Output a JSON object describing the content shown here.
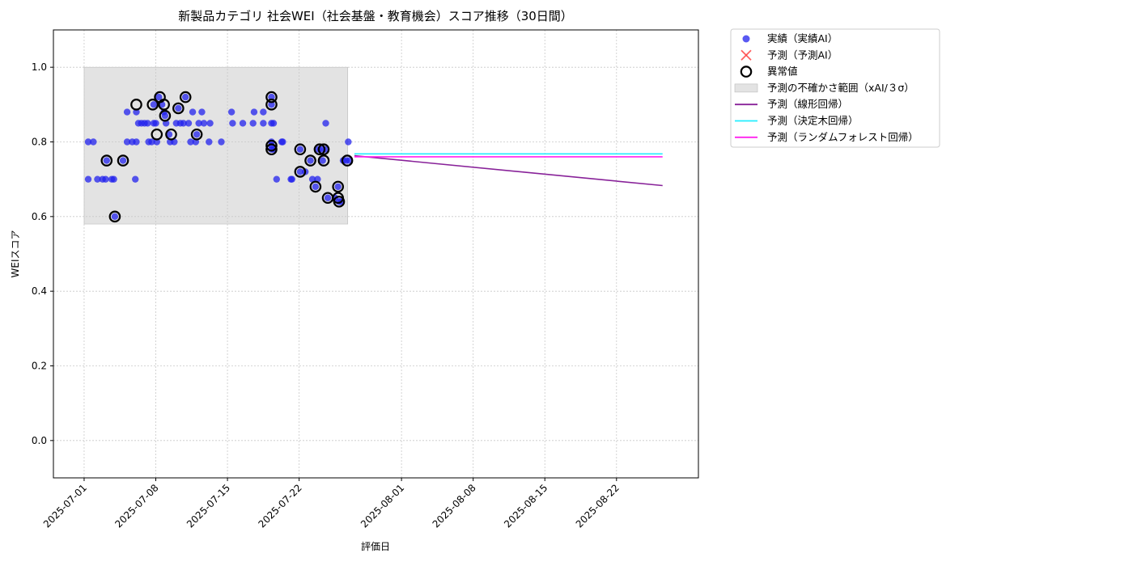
{
  "chart_data": {
    "type": "scatter",
    "title": "新製品カテゴリ 社会WEI（社会基盤・教育機会）スコア推移（30日間）",
    "xlabel": "評価日",
    "ylabel": "WEIスコア",
    "xlim": [
      "2025-06-28",
      "2025-08-30"
    ],
    "ylim": [
      -0.1,
      1.1
    ],
    "grid": true,
    "legend_position": "outside-top-right",
    "x_ticks": [
      "2025-07-01",
      "2025-07-08",
      "2025-07-15",
      "2025-07-22",
      "2025-08-01",
      "2025-08-08",
      "2025-08-15",
      "2025-08-22"
    ],
    "y_ticks": [
      "0.0",
      "0.2",
      "0.4",
      "0.6",
      "0.8",
      "1.0"
    ],
    "uncertainty_band": {
      "x_start": "2025-07-01",
      "x_end": "2025-07-26.75",
      "y_low": 0.58,
      "y_high": 1.0
    },
    "series": [
      {
        "name": "実績（実績AI）",
        "kind": "scatter",
        "color": "#2222ee",
        "points": [
          [
            "2025-07-01.4",
            0.8
          ],
          [
            "2025-07-01.9",
            0.8
          ],
          [
            "2025-07-01.4",
            0.7
          ],
          [
            "2025-07-02.3",
            0.7
          ],
          [
            "2025-07-02.8",
            0.7
          ],
          [
            "2025-07-03.1",
            0.7
          ],
          [
            "2025-07-03.2",
            0.75
          ],
          [
            "2025-07-03.7",
            0.7
          ],
          [
            "2025-07-03.9",
            0.7
          ],
          [
            "2025-07-04.0",
            0.6
          ],
          [
            "2025-07-04.8",
            0.75
          ],
          [
            "2025-07-05.2",
            0.88
          ],
          [
            "2025-07-05.2",
            0.8
          ],
          [
            "2025-07-05.7",
            0.8
          ],
          [
            "2025-07-06.0",
            0.7
          ],
          [
            "2025-07-06.1",
            0.8
          ],
          [
            "2025-07-06.1",
            0.88
          ],
          [
            "2025-07-06.3",
            0.85
          ],
          [
            "2025-07-06.6",
            0.85
          ],
          [
            "2025-07-06.9",
            0.85
          ],
          [
            "2025-07-07.2",
            0.85
          ],
          [
            "2025-07-07.3",
            0.8
          ],
          [
            "2025-07-07.6",
            0.8
          ],
          [
            "2025-07-07.8",
            0.85
          ],
          [
            "2025-07-08.0",
            0.85
          ],
          [
            "2025-07-08.1",
            0.8
          ],
          [
            "2025-07-07.8",
            0.9
          ],
          [
            "2025-07-08.3",
            0.92
          ],
          [
            "2025-07-08.6",
            0.9
          ],
          [
            "2025-07-08.8",
            0.88
          ],
          [
            "2025-07-08.9",
            0.87
          ],
          [
            "2025-07-09.0",
            0.85
          ],
          [
            "2025-07-09.3",
            0.82
          ],
          [
            "2025-07-09.4",
            0.8
          ],
          [
            "2025-07-09.8",
            0.8
          ],
          [
            "2025-07-10.0",
            0.85
          ],
          [
            "2025-07-10.2",
            0.89
          ],
          [
            "2025-07-10.4",
            0.85
          ],
          [
            "2025-07-10.7",
            0.85
          ],
          [
            "2025-07-10.9",
            0.92
          ],
          [
            "2025-07-11.2",
            0.85
          ],
          [
            "2025-07-11.4",
            0.8
          ],
          [
            "2025-07-11.6",
            0.88
          ],
          [
            "2025-07-11.9",
            0.8
          ],
          [
            "2025-07-12.0",
            0.82
          ],
          [
            "2025-07-12.2",
            0.85
          ],
          [
            "2025-07-12.5",
            0.88
          ],
          [
            "2025-07-12.7",
            0.85
          ],
          [
            "2025-07-13.3",
            0.85
          ],
          [
            "2025-07-13.2",
            0.8
          ],
          [
            "2025-07-14.4",
            0.8
          ],
          [
            "2025-07-15.4",
            0.88
          ],
          [
            "2025-07-15.5",
            0.85
          ],
          [
            "2025-07-16.5",
            0.85
          ],
          [
            "2025-07-17.5",
            0.85
          ],
          [
            "2025-07-17.6",
            0.88
          ],
          [
            "2025-07-18.5",
            0.88
          ],
          [
            "2025-07-18.5",
            0.85
          ],
          [
            "2025-07-19.3",
            0.92
          ],
          [
            "2025-07-19.3",
            0.9
          ],
          [
            "2025-07-19.3",
            0.85
          ],
          [
            "2025-07-19.5",
            0.85
          ],
          [
            "2025-07-19.3",
            0.8
          ],
          [
            "2025-07-19.3",
            0.79
          ],
          [
            "2025-07-19.3",
            0.78
          ],
          [
            "2025-07-19.5",
            0.78
          ],
          [
            "2025-07-19.8",
            0.7
          ],
          [
            "2025-07-20.3",
            0.8
          ],
          [
            "2025-07-20.4",
            0.8
          ],
          [
            "2025-07-21.2",
            0.7
          ],
          [
            "2025-07-21.3",
            0.7
          ],
          [
            "2025-07-22.1",
            0.78
          ],
          [
            "2025-07-22.1",
            0.72
          ],
          [
            "2025-07-22.6",
            0.72
          ],
          [
            "2025-07-23.1",
            0.75
          ],
          [
            "2025-07-23.3",
            0.7
          ],
          [
            "2025-07-23.6",
            0.68
          ],
          [
            "2025-07-23.8",
            0.7
          ],
          [
            "2025-07-23.9",
            0.78
          ],
          [
            "2025-07-24.1",
            0.78
          ],
          [
            "2025-07-24.3",
            0.75
          ],
          [
            "2025-07-24.6",
            0.78
          ],
          [
            "2025-07-24.6",
            0.85
          ],
          [
            "2025-07-24.8",
            0.65
          ],
          [
            "2025-07-25.5",
            0.65
          ],
          [
            "2025-07-25.8",
            0.68
          ],
          [
            "2025-07-25.9",
            0.64
          ],
          [
            "2025-07-26.1",
            0.64
          ],
          [
            "2025-07-26.3",
            0.75
          ],
          [
            "2025-07-26.6",
            0.75
          ],
          [
            "2025-07-26.8",
            0.8
          ],
          [
            "2025-07-26.9",
            0.75
          ]
        ]
      },
      {
        "name": "予測（予測AI）",
        "kind": "scatter",
        "color": "#ff4444",
        "marker": "x",
        "points": []
      },
      {
        "name": "異常値",
        "kind": "scatter",
        "color": "#000000",
        "marker": "open-circle",
        "points": [
          [
            "2025-07-03.2",
            0.75
          ],
          [
            "2025-07-04.0",
            0.6
          ],
          [
            "2025-07-04.8",
            0.75
          ],
          [
            "2025-07-06.1",
            0.9
          ],
          [
            "2025-07-07.7",
            0.9
          ],
          [
            "2025-07-08.1",
            0.82
          ],
          [
            "2025-07-08.4",
            0.92
          ],
          [
            "2025-07-08.8",
            0.9
          ],
          [
            "2025-07-08.9",
            0.87
          ],
          [
            "2025-07-09.5",
            0.82
          ],
          [
            "2025-07-10.2",
            0.89
          ],
          [
            "2025-07-10.9",
            0.92
          ],
          [
            "2025-07-12.0",
            0.82
          ],
          [
            "2025-07-19.3",
            0.92
          ],
          [
            "2025-07-19.3",
            0.9
          ],
          [
            "2025-07-19.3",
            0.79
          ],
          [
            "2025-07-19.3",
            0.78
          ],
          [
            "2025-07-22.1",
            0.78
          ],
          [
            "2025-07-22.1",
            0.72
          ],
          [
            "2025-07-23.1",
            0.75
          ],
          [
            "2025-07-23.6",
            0.68
          ],
          [
            "2025-07-24.0",
            0.78
          ],
          [
            "2025-07-24.4",
            0.78
          ],
          [
            "2025-07-24.4",
            0.75
          ],
          [
            "2025-07-24.8",
            0.65
          ],
          [
            "2025-07-25.8",
            0.68
          ],
          [
            "2025-07-25.8",
            0.65
          ],
          [
            "2025-07-25.9",
            0.64
          ],
          [
            "2025-07-26.7",
            0.75
          ]
        ]
      },
      {
        "name": "予測の不確かさ範囲（xAI/３σ）",
        "kind": "band",
        "color": "#cccccc"
      },
      {
        "name": "予測（線形回帰）",
        "kind": "line",
        "color": "#882299",
        "x": [
          "2025-07-27.4",
          "2025-08-26.5"
        ],
        "values": [
          0.763,
          0.683
        ]
      },
      {
        "name": "予測（決定木回帰）",
        "kind": "line",
        "color": "#22eeff",
        "x": [
          "2025-07-27.4",
          "2025-08-26.5"
        ],
        "values": [
          0.768,
          0.768
        ]
      },
      {
        "name": "予測（ランダムフォレスト回帰）",
        "kind": "line",
        "color": "#ff22ee",
        "x": [
          "2025-07-27.4",
          "2025-08-26.5"
        ],
        "values": [
          0.76,
          0.76
        ]
      }
    ]
  }
}
